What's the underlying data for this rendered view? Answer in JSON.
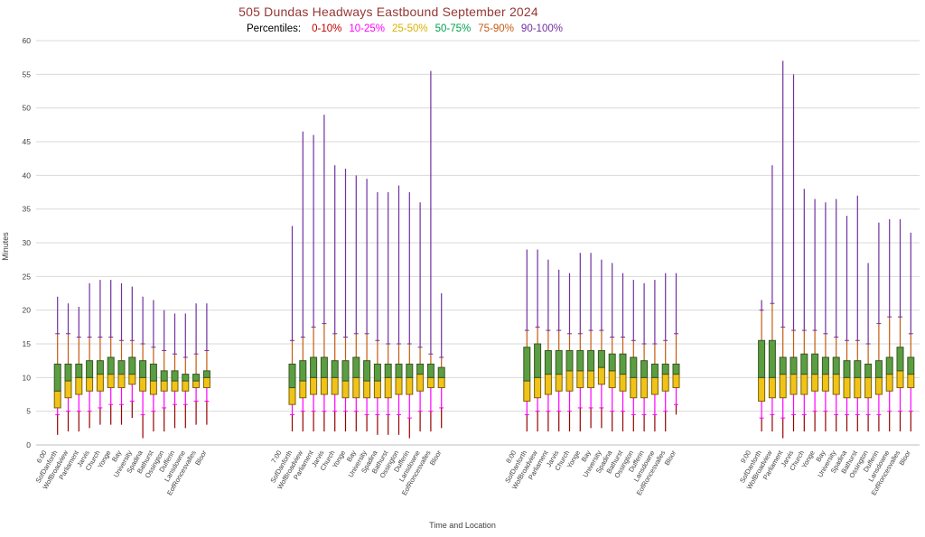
{
  "title": "505 Dundas Headways Eastbound September 2024",
  "legend": {
    "prefix": "Percentiles:",
    "items": [
      {
        "label": "0-10%",
        "color": "#C00000"
      },
      {
        "label": "10-25%",
        "color": "#FF00FF"
      },
      {
        "label": "25-50%",
        "color": "#D9B200"
      },
      {
        "label": "50-75%",
        "color": "#00A14B"
      },
      {
        "label": "75-90%",
        "color": "#C55A11"
      },
      {
        "label": "90-100%",
        "color": "#7030A0"
      }
    ]
  },
  "axes": {
    "y_label": "Minutes",
    "x_label": "Time and Location",
    "y_min": 0,
    "y_max": 60,
    "y_step": 5,
    "grid": true
  },
  "chart_data": {
    "type": "boxplot",
    "percentile_keys": [
      "min",
      "p10",
      "p25",
      "p50",
      "p75",
      "p90",
      "max"
    ],
    "colors": {
      "whisker_0_10": "#990000",
      "whisker_10_25": "#FF00FF",
      "box_25_50_fill": "#EFC319",
      "box_25_50_stroke": "#7F6000",
      "box_50_75_fill": "#5B9E41",
      "box_50_75_stroke": "#375623",
      "whisker_75_90": "#C55A11",
      "whisker_90_100": "#7030A0"
    },
    "stations": [
      "SofDanforth",
      "WofBroadview",
      "Parliament",
      "Jarvis",
      "Church",
      "Yonge",
      "Bay",
      "University",
      "Spadina",
      "Bathurst",
      "Ossington",
      "Dufferin",
      "Lansdowne",
      "EofRoncesvalles",
      "Bloor"
    ],
    "groups": [
      {
        "time": "6:00",
        "values": [
          [
            1.5,
            4.5,
            5.5,
            8,
            12,
            16.5,
            22
          ],
          [
            2,
            5,
            7,
            9.5,
            12,
            16.5,
            21
          ],
          [
            2,
            5,
            7.5,
            10,
            12,
            16,
            20.5
          ],
          [
            2.5,
            5,
            8,
            10,
            12.5,
            16,
            24
          ],
          [
            3,
            5.5,
            8,
            10.5,
            12.5,
            16,
            24.5
          ],
          [
            3,
            6,
            8.5,
            10.5,
            13,
            16,
            24.5
          ],
          [
            3,
            6,
            8.5,
            10.5,
            12.5,
            15.5,
            24
          ],
          [
            4,
            6.5,
            9,
            10.5,
            13,
            15.5,
            23.5
          ],
          [
            1,
            4.5,
            8,
            10,
            12.5,
            15,
            22
          ],
          [
            2,
            5,
            7.5,
            9.5,
            12,
            14.5,
            21.5
          ],
          [
            2,
            5.5,
            8,
            9.5,
            11,
            14,
            20
          ],
          [
            2.5,
            6,
            8,
            9.5,
            11,
            13.5,
            19.5
          ],
          [
            2.5,
            6,
            8,
            9.5,
            10.5,
            13,
            19.5
          ],
          [
            3,
            6.5,
            8.5,
            9.5,
            10.5,
            13.5,
            21
          ],
          [
            3,
            6.5,
            8.5,
            10,
            11,
            14,
            21
          ]
        ]
      },
      {
        "time": "7:00",
        "values": [
          [
            2,
            4.5,
            6,
            8.5,
            12,
            15.5,
            32.5
          ],
          [
            2,
            5,
            7,
            9.5,
            12.5,
            16,
            46.5
          ],
          [
            2,
            5,
            7.5,
            10,
            13,
            17.5,
            46
          ],
          [
            2,
            5,
            7.5,
            10,
            13,
            18,
            49
          ],
          [
            2,
            5,
            7.5,
            10,
            12.5,
            16.5,
            41.5
          ],
          [
            2,
            5,
            7,
            9.5,
            12.5,
            16,
            41
          ],
          [
            2,
            5,
            7,
            10,
            13,
            16.5,
            40
          ],
          [
            2,
            4.5,
            7,
            9.5,
            12.5,
            16.5,
            39.5
          ],
          [
            1.5,
            4.5,
            7,
            9.5,
            12,
            15.5,
            37.5
          ],
          [
            1.5,
            4.5,
            7,
            10,
            12,
            15,
            37.5
          ],
          [
            1.5,
            4.5,
            7.5,
            10,
            12,
            15,
            38.5
          ],
          [
            1,
            4,
            7.5,
            10,
            12,
            15,
            37.5
          ],
          [
            2,
            5,
            8,
            10.5,
            12,
            14.5,
            36
          ],
          [
            2,
            5,
            8.5,
            10,
            12,
            13.5,
            55.5
          ],
          [
            2.5,
            5.5,
            8.5,
            10,
            11.5,
            13,
            22.5
          ]
        ]
      },
      {
        "time": "8:00",
        "values": [
          [
            2,
            4.5,
            6.5,
            9.5,
            14.5,
            17,
            29
          ],
          [
            2,
            5,
            7,
            10,
            15,
            17.5,
            29
          ],
          [
            2,
            5,
            7.5,
            10.5,
            14,
            17,
            27.5
          ],
          [
            2,
            5,
            8,
            10.5,
            14,
            17,
            26
          ],
          [
            2,
            5,
            8,
            11,
            14,
            16.5,
            25.5
          ],
          [
            2,
            5.5,
            8.5,
            11,
            14,
            16.5,
            28.5
          ],
          [
            2.5,
            5.5,
            8.5,
            11,
            14,
            17,
            28.5
          ],
          [
            2.5,
            5.5,
            9,
            11.5,
            14,
            17,
            27.5
          ],
          [
            2,
            5,
            8.5,
            11,
            13.5,
            16,
            27
          ],
          [
            2,
            5,
            8,
            10.5,
            13.5,
            16,
            25.5
          ],
          [
            2,
            4.5,
            7,
            10,
            13,
            15.5,
            24.5
          ],
          [
            2,
            4.5,
            7,
            10,
            12.5,
            15,
            24
          ],
          [
            2,
            4.5,
            7.5,
            10,
            12,
            15,
            24.5
          ],
          [
            2,
            5,
            8,
            10.5,
            12,
            15.5,
            25.5
          ],
          [
            4.5,
            6,
            8.5,
            10.5,
            12,
            16.5,
            25.5
          ]
        ]
      },
      {
        "time": "9:00",
        "values": [
          [
            2,
            4,
            6.5,
            10,
            15.5,
            20,
            21.5
          ],
          [
            2,
            4.5,
            7,
            10,
            15.5,
            21,
            41.5
          ],
          [
            1,
            4,
            7,
            10.5,
            13,
            17.5,
            57
          ],
          [
            2,
            4.5,
            7.5,
            10.5,
            13,
            17,
            55
          ],
          [
            2,
            4.5,
            7.5,
            10.5,
            13.5,
            17,
            38
          ],
          [
            2,
            5,
            8,
            10.5,
            13.5,
            17,
            36.5
          ],
          [
            2,
            5,
            8,
            10.5,
            13,
            16.5,
            36
          ],
          [
            2,
            4.5,
            7.5,
            10.5,
            13,
            16,
            36.5
          ],
          [
            2,
            4.5,
            7,
            10,
            12.5,
            15.5,
            34
          ],
          [
            2,
            4.5,
            7,
            10,
            12.5,
            15.5,
            37
          ],
          [
            2,
            4.5,
            7,
            10,
            12,
            15,
            27
          ],
          [
            2,
            4.5,
            7.5,
            10,
            12.5,
            18,
            33
          ],
          [
            2,
            5,
            8,
            10.5,
            13,
            19,
            33.5
          ],
          [
            2,
            5,
            8.5,
            11,
            14.5,
            19,
            33.5
          ],
          [
            2,
            5,
            8.5,
            10.5,
            13,
            16.5,
            31.5
          ]
        ]
      }
    ]
  }
}
